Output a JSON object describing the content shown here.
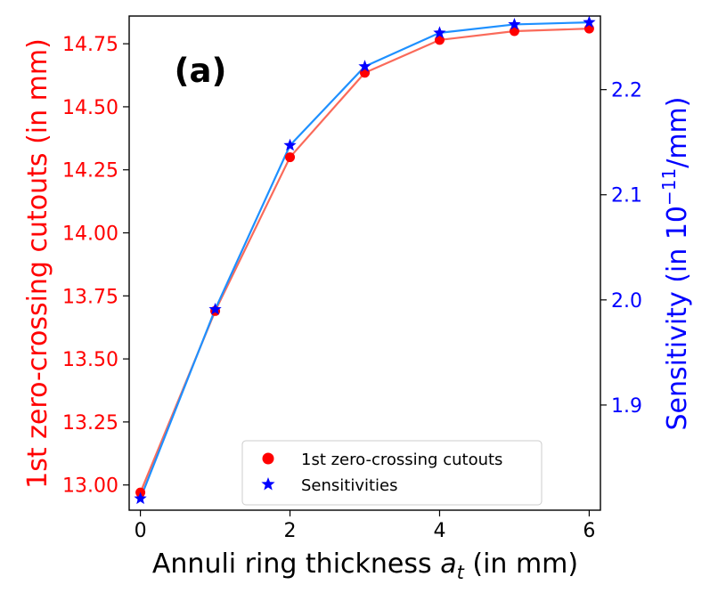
{
  "chart_data": {
    "type": "line",
    "panel_label": "(a)",
    "xlabel": "Annuli ring thickness",
    "xlabel_symbol": "a",
    "xlabel_subscript": "t",
    "xlabel_unit": "(in mm)",
    "ylabel_left": "1st zero-crossing cutouts (in mm)",
    "ylabel_right_prefix": "Sensitivity (in 10",
    "ylabel_right_exponent": "−11",
    "ylabel_right_suffix": "/mm)",
    "xlim": [
      -0.15,
      6.15
    ],
    "ylim_left": [
      12.9,
      14.86
    ],
    "ylim_right": [
      1.8,
      2.27
    ],
    "x_ticks": [
      "0",
      "2",
      "4",
      "6"
    ],
    "y_ticks_left": [
      "13.00",
      "13.25",
      "13.50",
      "13.75",
      "14.00",
      "14.25",
      "14.50",
      "14.75"
    ],
    "y_ticks_right": [
      "1.9",
      "2.0",
      "2.1",
      "2.2"
    ],
    "series": [
      {
        "name": "1st zero-crossing cutouts",
        "axis": "left",
        "marker": "circle",
        "marker_color": "#ff0000",
        "line_color": "#fa6a5a",
        "x": [
          0,
          1,
          2,
          3,
          4,
          5,
          6
        ],
        "values": [
          12.97,
          13.69,
          14.3,
          14.635,
          14.765,
          14.8,
          14.81
        ]
      },
      {
        "name": "Sensitivities",
        "axis": "right",
        "marker": "star",
        "marker_color": "#0000ff",
        "line_color": "#1e90ff",
        "x": [
          0,
          1,
          2,
          3,
          4,
          5,
          6
        ],
        "values": [
          1.811,
          1.991,
          2.147,
          2.222,
          2.254,
          2.262,
          2.264
        ]
      }
    ],
    "legend": {
      "position": "lower-center",
      "entries": [
        "1st zero-crossing cutouts",
        "Sensitivities"
      ]
    },
    "colors": {
      "left_axis": "#ff0000",
      "right_axis": "#0000ff",
      "text": "#000000"
    }
  }
}
